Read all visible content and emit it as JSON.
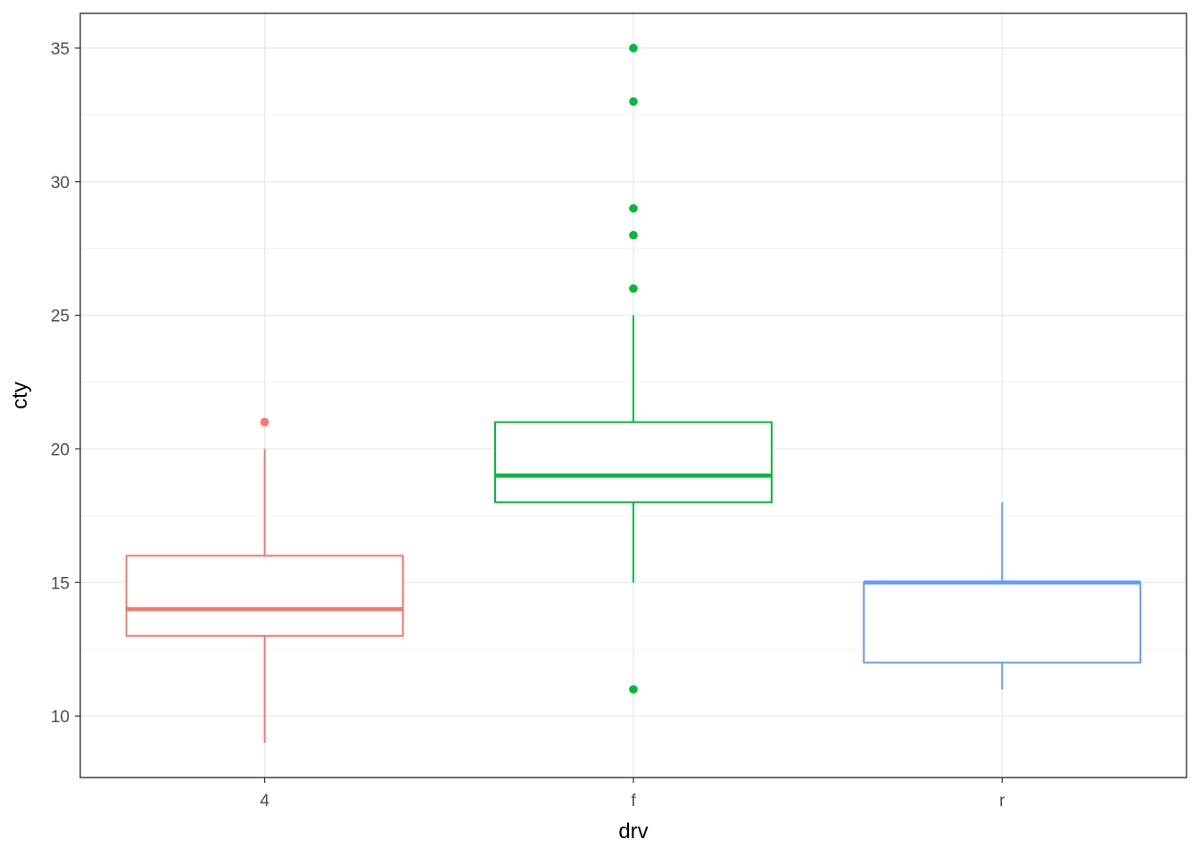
{
  "chart_data": {
    "type": "boxplot",
    "xlabel": "drv",
    "ylabel": "cty",
    "ylim": [
      7.7,
      36.3
    ],
    "y_ticks": [
      10,
      15,
      20,
      25,
      30,
      35
    ],
    "y_tick_labels": [
      "10",
      "15",
      "20",
      "25",
      "30",
      "35"
    ],
    "categories": [
      "4",
      "f",
      "r"
    ],
    "grid": true,
    "legend": "none",
    "series": [
      {
        "category": "4",
        "color": "#F8766D",
        "whisker_low": 9,
        "q1": 13,
        "median": 14,
        "q3": 16,
        "whisker_high": 20,
        "outliers": [
          21
        ]
      },
      {
        "category": "f",
        "color": "#00BA38",
        "whisker_low": 15,
        "q1": 18,
        "median": 19,
        "q3": 21,
        "whisker_high": 25,
        "outliers": [
          11,
          26,
          28,
          29,
          33,
          35
        ]
      },
      {
        "category": "r",
        "color": "#619CFF",
        "whisker_low": 11,
        "q1": 12,
        "median": 15,
        "q3": 15,
        "whisker_high": 18,
        "outliers": []
      }
    ]
  }
}
